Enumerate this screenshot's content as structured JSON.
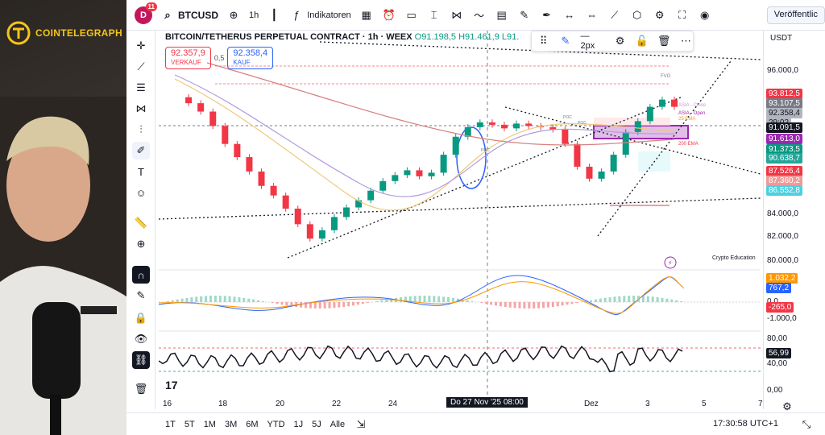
{
  "overlay": {
    "brand": "COINTELEGRAPH"
  },
  "header": {
    "avatar_letter": "D",
    "notif_count": "11",
    "symbol": "BTCUSD",
    "interval": "1h",
    "indicators_label": "Indikatoren",
    "publish_label": "Veröffentlic"
  },
  "legend": {
    "title": "BITCOIN/TETHERUS PERPETUAL CONTRACT · 1h · WEEX",
    "ohlc": "O91.198,5 H91.461,9 L91.",
    "sell_price": "92.357,9",
    "sell_label": "VERKAUF",
    "spread": "0,5",
    "buy_price": "92.358,4",
    "buy_label": "KAUF"
  },
  "drawbar": {
    "width_label": "2px"
  },
  "price_axis": {
    "currency": "USDT",
    "ticks": [
      "96.000,0",
      "84.000,0",
      "82.000,0",
      "80.000,0"
    ],
    "tags": [
      {
        "value": "93.812,5",
        "color": "#f23645"
      },
      {
        "value": "93.107,5",
        "color": "#787b86"
      },
      {
        "value": "92.358,4",
        "color": "#b2b5be"
      },
      {
        "value": "29:02",
        "color": "#b2b5be"
      },
      {
        "value": "91.091,5",
        "color": "#131722"
      },
      {
        "value": "91.613,0",
        "color": "#9c27b0"
      },
      {
        "value": "91.373,5",
        "color": "#089981"
      },
      {
        "value": "90.638,7",
        "color": "#26a69a"
      },
      {
        "value": "87.526,4",
        "color": "#f23645"
      },
      {
        "value": "87.360,2",
        "color": "#ef9a9a"
      },
      {
        "value": "86.552,8",
        "color": "#4dd0e1"
      }
    ]
  },
  "macd_axis": {
    "tags": [
      {
        "value": "1.032,2",
        "color": "#ff9800"
      },
      {
        "value": "767,2",
        "color": "#2962ff"
      },
      {
        "value": "-265,0",
        "color": "#f23645"
      }
    ],
    "ticks": [
      "0,0",
      "-1.000,0"
    ]
  },
  "rsi_axis": {
    "ticks": [
      "80,00",
      "40,00",
      "0,00"
    ],
    "tag": "56,99"
  },
  "chart_labels": {
    "fvg": "FVG",
    "asia_close": "ASIA - Close",
    "asia_open": "ASIA - Open",
    "ema25": "25 EMA",
    "ema200": "200 EMA",
    "poc": "POC",
    "educ": "Crypto Education"
  },
  "time_axis": {
    "labels": [
      "16",
      "18",
      "20",
      "22",
      "24",
      "Dez",
      "3",
      "5",
      "7"
    ],
    "crosshair": "Do 27 Nov '25   08:00"
  },
  "bottom": {
    "ranges": [
      "1T",
      "5T",
      "1M",
      "3M",
      "6M",
      "YTD",
      "1J",
      "5J",
      "Alle"
    ],
    "clock": "17:30:58 UTC+1"
  },
  "chart_data": {
    "type": "candlestick",
    "series": [
      {
        "name": "close",
        "values": [
          93400,
          92900,
          92200,
          91000,
          89500,
          88400,
          87200,
          86000,
          85200,
          84100,
          82800,
          81600,
          82300,
          83400,
          84200,
          84800,
          85600,
          86400,
          86900,
          87300,
          86800,
          87100,
          88600,
          90100,
          90900,
          91300,
          91100,
          90800,
          91200,
          91000,
          90900,
          90700,
          89500,
          87600,
          86600,
          87200,
          88600,
          90500,
          91400,
          92600,
          93200,
          92600
        ]
      }
    ]
  }
}
